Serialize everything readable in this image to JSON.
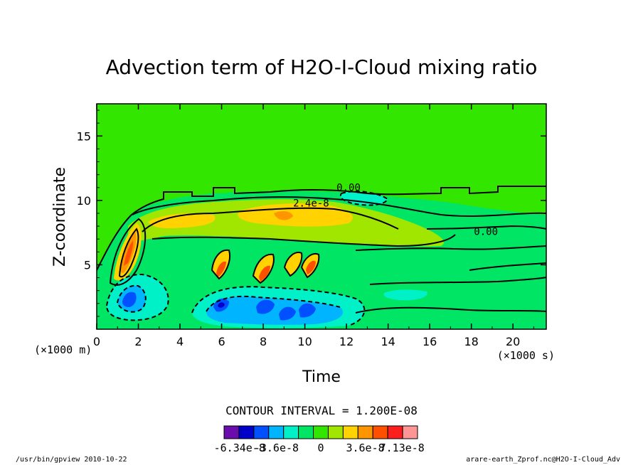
{
  "chart_data": {
    "type": "contour",
    "title": "Advection term of H2O-I-Cloud mixing ratio",
    "xlabel": "Time",
    "ylabel": "Z-coordinate",
    "x_unit": "(×1000 s)",
    "y_unit": "(×1000 m)",
    "xlim": [
      0,
      21.6
    ],
    "ylim": [
      0,
      17.5
    ],
    "x_ticks": [
      0,
      2,
      4,
      6,
      8,
      10,
      12,
      14,
      16,
      18,
      20
    ],
    "y_ticks": [
      5,
      10,
      15
    ],
    "contour_interval_text": "CONTOUR INTERVAL = 1.200E-08",
    "contour_labels": [
      {
        "text": "0.00",
        "x": 12.1,
        "y": 11.0
      },
      {
        "text": "2.4e-8",
        "x": 10.3,
        "y": 9.8
      },
      {
        "text": "0.00",
        "x": 18.7,
        "y": 7.6
      }
    ],
    "colorbar": {
      "colors": [
        "#6a0dad",
        "#0000c8",
        "#0050ff",
        "#00b4ff",
        "#00f0c8",
        "#00e664",
        "#32e600",
        "#a0e600",
        "#ffd200",
        "#ff9600",
        "#ff5000",
        "#ff1e1e",
        "#ff9696"
      ],
      "labels": [
        "-6.34e-8",
        "-3.6e-8",
        "0",
        "3.6e-8",
        "7.13e-8"
      ]
    },
    "background_value": 0
  },
  "footer": {
    "left": "/usr/bin/gpview  2010-10-22",
    "right": "arare-earth_Zprof.nc@H2O-I-Cloud_Adv"
  },
  "colors": {
    "background_field": "#32e600",
    "zero_band": "#00e664"
  }
}
